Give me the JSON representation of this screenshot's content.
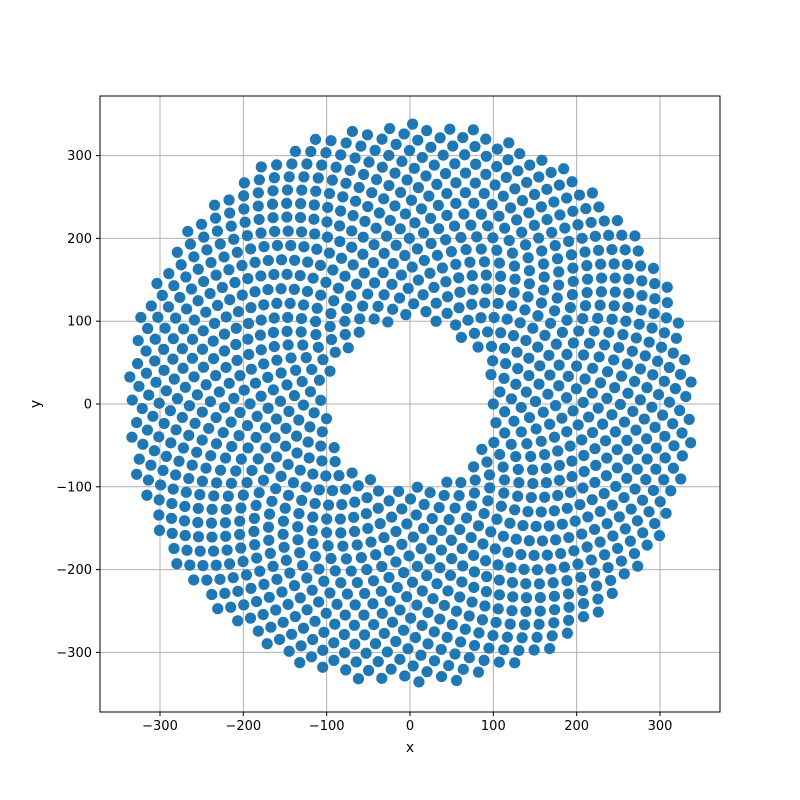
{
  "chart_data": {
    "type": "scatter",
    "title": "",
    "xlabel": "x",
    "ylabel": "y",
    "xlim": [
      -372,
      372
    ],
    "ylim": [
      -372,
      372
    ],
    "xticks": [
      -300,
      -200,
      -100,
      0,
      100,
      200,
      300
    ],
    "yticks": [
      -300,
      -200,
      -100,
      0,
      100,
      200,
      300
    ],
    "xtick_labels": [
      "−300",
      "−200",
      "−100",
      "0",
      "100",
      "200",
      "300"
    ],
    "ytick_labels": [
      "−300",
      "−200",
      "−100",
      "0",
      "100",
      "200",
      "300"
    ],
    "grid": true,
    "marker_color": "#1f77b4",
    "series": [
      {
        "pattern": "golden-angle spiral (sunflower/phyllotaxis) filling an annulus",
        "inner_radius": 100,
        "outer_radius": 340,
        "point_count": 1200,
        "golden_angle_deg": 137.508
      }
    ]
  }
}
